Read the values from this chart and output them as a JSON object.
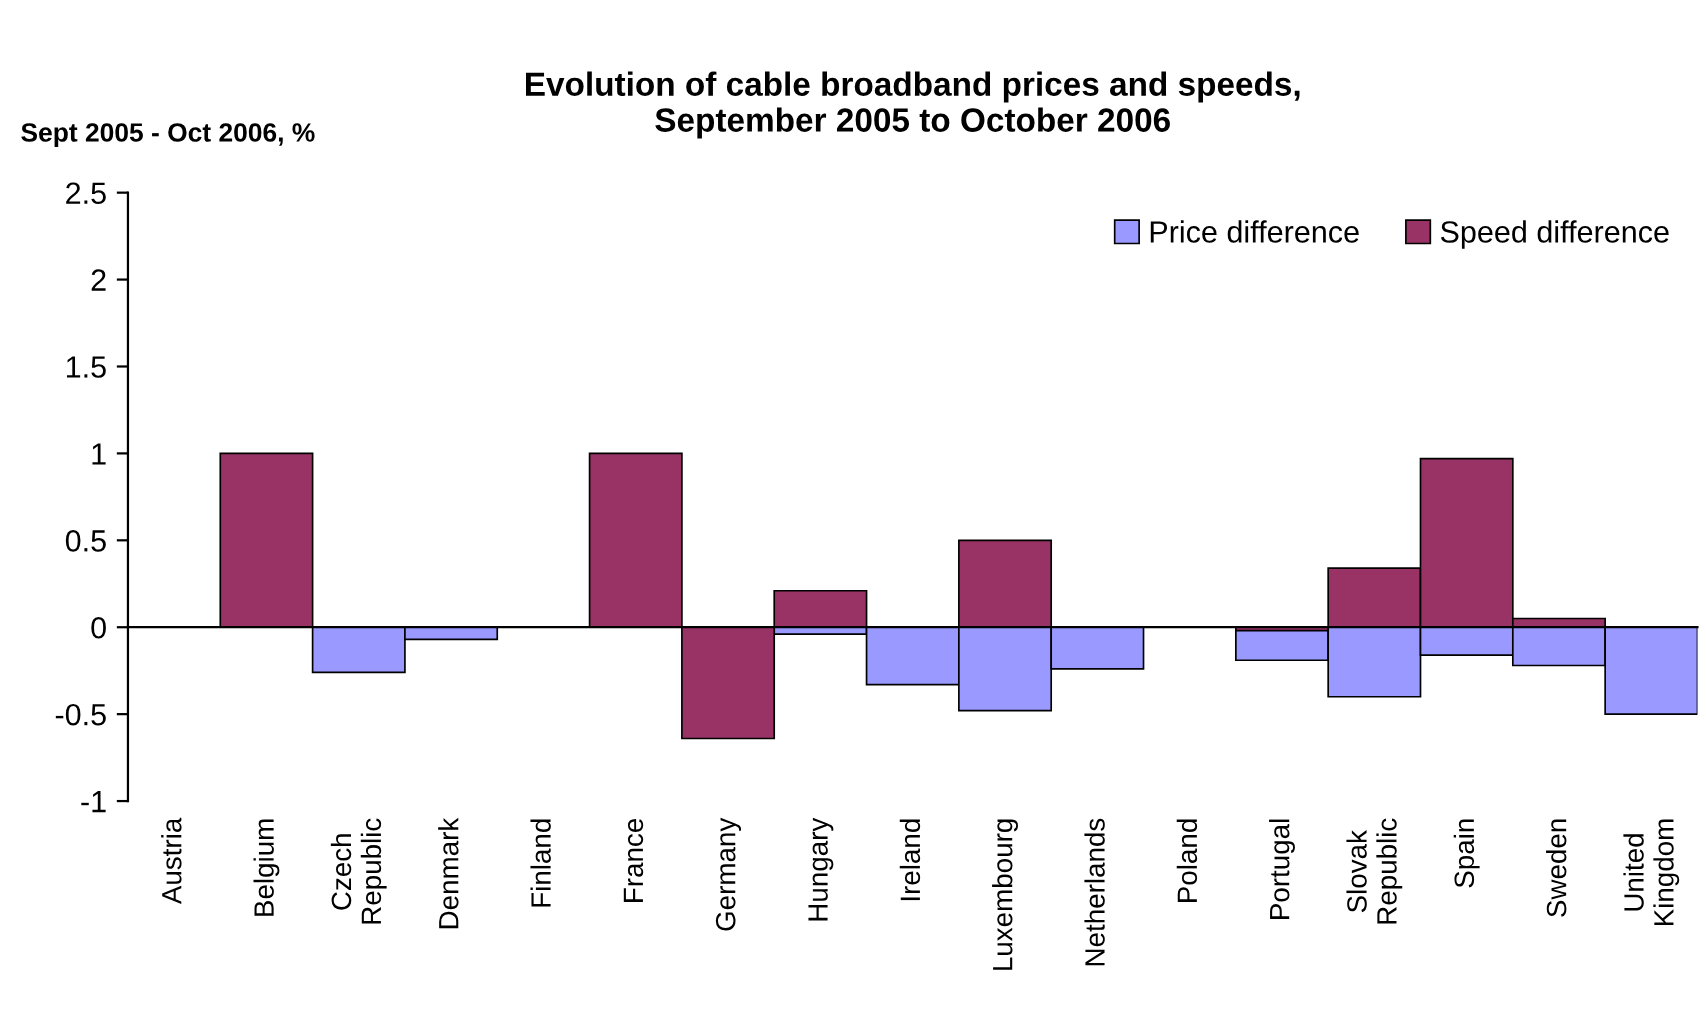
{
  "chart_data": {
    "type": "bar",
    "title": "Evolution of cable broadband prices and speeds,\nSeptember 2005 to October 2006",
    "ylabel": "Sept 2005 - Oct 2006, %",
    "categories": [
      "Austria",
      "Belgium",
      "Czech\nRepublic",
      "Denmark",
      "Finland",
      "France",
      "Germany",
      "Hungary",
      "Ireland",
      "Luxembourg",
      "Netherlands",
      "Poland",
      "Portugal",
      "Slovak\nRepublic",
      "Spain",
      "Sweden",
      "United\nKingdom"
    ],
    "series": [
      {
        "name": "Price difference",
        "color": "#9999ff",
        "values": [
          null,
          null,
          -0.26,
          -0.07,
          null,
          null,
          null,
          -0.04,
          -0.33,
          -0.48,
          -0.24,
          null,
          -0.19,
          -0.4,
          -0.16,
          -0.22,
          -0.5
        ]
      },
      {
        "name": "Speed difference",
        "color": "#993366",
        "values": [
          null,
          1.0,
          null,
          null,
          null,
          1.0,
          -0.64,
          0.21,
          null,
          0.5,
          null,
          null,
          -0.02,
          0.34,
          0.97,
          0.05,
          null
        ]
      }
    ],
    "ylim": [
      -1,
      2.5
    ],
    "yticks": [
      -1,
      -0.5,
      0,
      0.5,
      1,
      1.5,
      2,
      2.5
    ],
    "legend": "top right"
  }
}
